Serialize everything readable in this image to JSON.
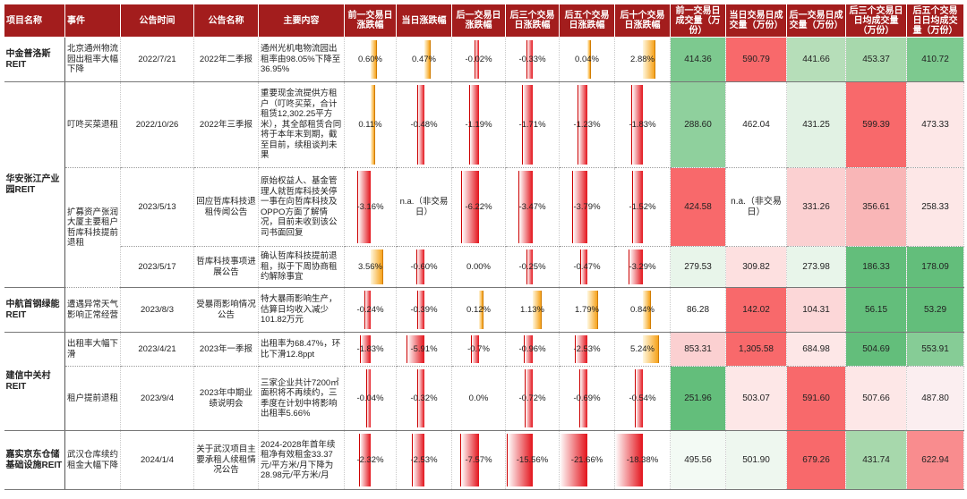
{
  "headers": [
    "项目名称",
    "事件",
    "公告时间",
    "公告名称",
    "主要内容",
    "前一交易日涨跌幅",
    "当日涨跌幅",
    "后一交易日涨跌幅",
    "后三个交易日涨跌幅",
    "后五个交易日涨跌幅",
    "后十个交易日涨跌幅",
    "前一交易日成交量（万份）",
    "当日交易日成交量（万份）",
    "后一交易日成交量（万份）",
    "后三个交易日日均成交量（万份）",
    "后五个交易日日均成交量（万份）"
  ],
  "colors": {
    "header_bg": "#a31d1d",
    "pos_bar": "#f6a31c",
    "neg_bar": "#e3131b",
    "vol_green": "#63be7b",
    "vol_red": "#f8696b"
  },
  "rows": [
    {
      "project": "中金普洛斯REIT",
      "event": "北京通州物流园出租率大幅下降",
      "date": "2022/7/21",
      "ann": "2022年二季报",
      "content": "通州光机电物流园出租率由98.05%下降至36.95%",
      "pct": [
        "0.60%",
        "0.47%",
        "-0.02%",
        "-0.33%",
        "0.04%",
        "2.88%"
      ],
      "pctv": [
        0.6,
        0.47,
        -0.02,
        -0.33,
        0.04,
        2.88
      ],
      "vol": [
        "414.36",
        "590.79",
        "441.66",
        "453.37",
        "410.72"
      ],
      "volc": [
        "#7dc98f",
        "#f8696b",
        "#b6deb9",
        "#a7d8ac",
        "#7dc98f"
      ]
    },
    {
      "project": "华安张江产业园REIT",
      "event": "叮咚买菜退租",
      "date": "2022/10/26",
      "ann": "2022年三季报",
      "content": "重要现金流提供方租户（叮咚买菜，合计租赁12,302.25平方米），其全部租赁合同将于本年末到期，截至目前，续租谈判未果",
      "pct": [
        "0.11%",
        "-0.48%",
        "-1.19%",
        "-1.71%",
        "-1.23%",
        "-1.83%"
      ],
      "pctv": [
        0.11,
        -0.48,
        -1.19,
        -1.71,
        -1.23,
        -1.83
      ],
      "vol": [
        "288.60",
        "462.04",
        "431.25",
        "599.39",
        "473.33"
      ],
      "volc": [
        "#8fd09d",
        "#ffffff",
        "#e2f2e4",
        "#f8696b",
        "#fde7e7"
      ]
    },
    {
      "project": "",
      "event": "扩募资产张润大厦主要租户哲库科技提前退租",
      "date": "2023/5/13",
      "ann": "回应哲库科技退租传闻公告",
      "content": "原始权益人、基金管理人就哲库科技关停一事在向哲库科技及OPPO方面了解情况，目前未收到该公司书面回复",
      "pct": [
        "-3.16%",
        "n.a.（非交易日）",
        "-6.22%",
        "-3.47%",
        "-3.79%",
        "-1.52%"
      ],
      "pctv": [
        -3.16,
        0,
        -6.22,
        -3.47,
        -3.79,
        -1.52
      ],
      "vol": [
        "424.58",
        "n.a.（非交易日）",
        "331.26",
        "356.61",
        "258.33"
      ],
      "volc": [
        "#f8696b",
        "#ffffff",
        "#fbd0d1",
        "#f9b6b7",
        "#fde7e7"
      ]
    },
    {
      "project": "",
      "event": "",
      "date": "2023/5/17",
      "ann": "哲库科技事项进展公告",
      "content": "确认哲库科技提前退租，拟于下周协商租约解除事宜",
      "pct": [
        "3.56%",
        "-0.60%",
        "0.00%",
        "-0.25%",
        "-0.47%",
        "-3.29%"
      ],
      "pctv": [
        3.56,
        -0.6,
        0.0,
        -0.25,
        -0.47,
        -3.29
      ],
      "vol": [
        "279.53",
        "309.82",
        "273.98",
        "186.33",
        "178.09"
      ],
      "volc": [
        "#e8f5ea",
        "#fde0e0",
        "#e8f5ea",
        "#63be7b",
        "#63be7b"
      ]
    },
    {
      "project": "中航首钢绿能REIT",
      "event": "遭遇异常天气影响正常经营",
      "date": "2023/8/3",
      "ann": "受暴雨影响情况公告",
      "content": "特大暴雨影响生产，估算日均收入减少101.82万元",
      "pct": [
        "-0.24%",
        "-0.39%",
        "0.12%",
        "1.13%",
        "1.79%",
        "0.84%"
      ],
      "pctv": [
        -0.24,
        -0.39,
        0.12,
        1.13,
        1.79,
        0.84
      ],
      "vol": [
        "86.28",
        "142.02",
        "104.31",
        "56.15",
        "53.29"
      ],
      "volc": [
        "#ffffff",
        "#f8696b",
        "#fcd7d8",
        "#63be7b",
        "#63be7b"
      ]
    },
    {
      "project": "建信中关村REIT",
      "event": "出租率大幅下滑",
      "date": "2023/4/21",
      "ann": "2023年一季报",
      "content": "出租率为68.47%，环比下滑12.8ppt",
      "pct": [
        "-1.83%",
        "-5.91%",
        "-0.7%",
        "-0.96%",
        "-2.53%",
        "5.24%"
      ],
      "pctv": [
        -1.83,
        -5.91,
        -0.7,
        -0.96,
        -2.53,
        5.24
      ],
      "vol": [
        "853.31",
        "1,305.58",
        "684.98",
        "504.69",
        "553.91"
      ],
      "volc": [
        "#fbd0d1",
        "#f8696b",
        "#fde7e7",
        "#63be7b",
        "#86cc96"
      ]
    },
    {
      "project": "",
      "event": "租户提前退租",
      "date": "2023/9/4",
      "ann": "2023年中期业绩说明会",
      "content": "三家企业共计7200㎡面积将不再续约，三季度在计划中将影响出租率5.66%",
      "pct": [
        "-0.04%",
        "-0.32%",
        "0.0%",
        "-0.72%",
        "-0.69%",
        "-0.54%"
      ],
      "pctv": [
        -0.04,
        -0.32,
        0.0,
        -0.72,
        -0.69,
        -0.54
      ],
      "vol": [
        "251.96",
        "503.07",
        "591.60",
        "507.66",
        "487.80"
      ],
      "volc": [
        "#63be7b",
        "#fde7e7",
        "#f8696b",
        "#fde7e7",
        "#fbeef0"
      ]
    },
    {
      "project": "嘉实京东仓储基础设施REIT",
      "event": "武汉仓库续约租金大幅下降",
      "date": "2024/1/4",
      "ann": "关于武汉项目主要承租人续租情况公告",
      "content": "2024-2028年首年续租净有效租金33.37元/平方米/月下降为28.98元/平方米/月",
      "pct": [
        "-2.32%",
        "-2.53%",
        "-7.57%",
        "-15.56%",
        "-21.66%",
        "-18.38%"
      ],
      "pctv": [
        -2.32,
        -2.53,
        -7.57,
        -15.56,
        -21.66,
        -18.38
      ],
      "vol": [
        "495.56",
        "501.90",
        "679.26",
        "431.74",
        "622.94"
      ],
      "volc": [
        "#f3faf4",
        "#eef7ef",
        "#f8696b",
        "#a7d8ac",
        "#f98c8e"
      ]
    }
  ]
}
